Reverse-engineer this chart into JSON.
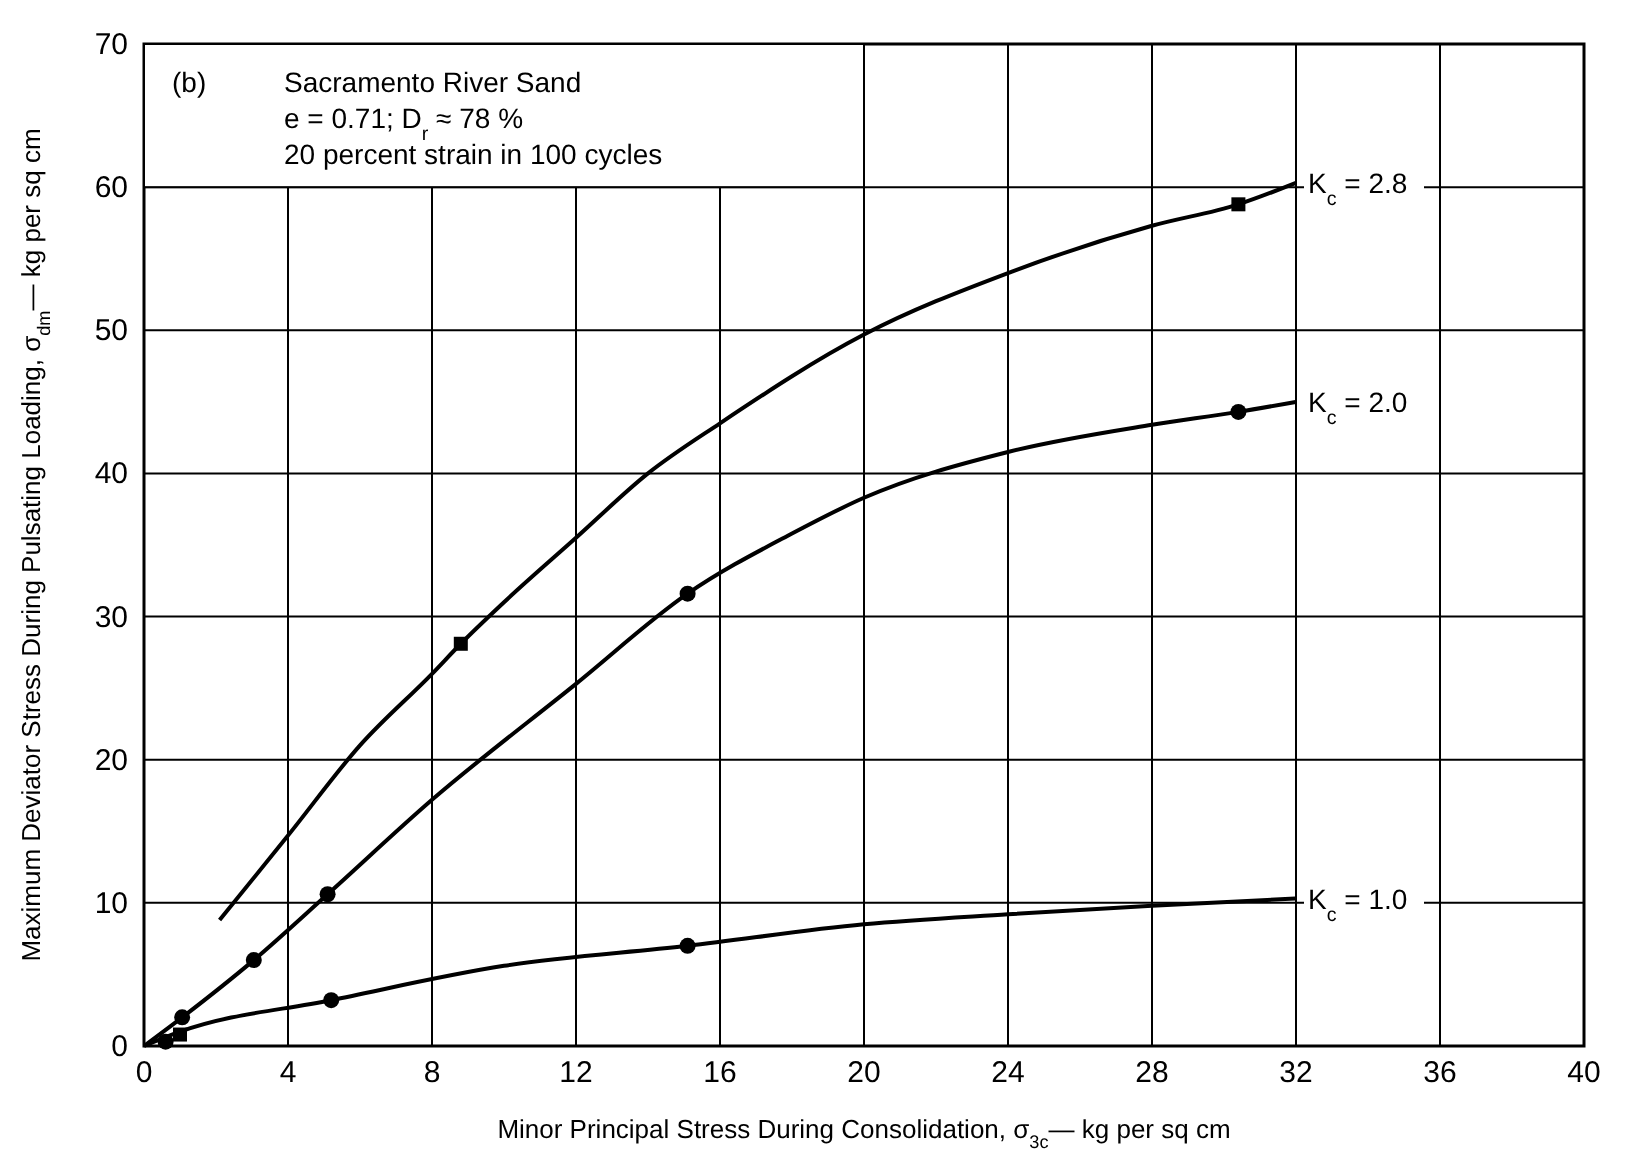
{
  "chart_data": {
    "type": "line",
    "xlabel": "Minor Principal Stress During Consolidation, σ$_{3c}$— kg per sq cm",
    "ylabel": "Maximum Deviator Stress During Pulsating Loading, σ$_{dm}$— kg per sq cm",
    "annotations": [
      "(b)",
      "Sacramento River Sand",
      "e = 0.71;  D$_{r}$ ≈ 78 %",
      "20 percent strain in 100 cycles"
    ],
    "xlim": [
      0,
      40
    ],
    "ylim": [
      0,
      70
    ],
    "xticks": [
      0,
      4,
      8,
      12,
      16,
      20,
      24,
      28,
      32,
      36,
      40
    ],
    "yticks": [
      0,
      10,
      20,
      30,
      40,
      50,
      60,
      70
    ],
    "grid": true,
    "marker": "none",
    "line_style": "solid",
    "series": [
      {
        "name": "K$_{c}$ = 2.8",
        "color": "#000000",
        "x": [
          2.1,
          4,
          6,
          8,
          8.8,
          10,
          12,
          14,
          16,
          20,
          24,
          28,
          30.4,
          32
        ],
        "values": [
          8.8,
          14.7,
          21,
          26,
          28.1,
          31,
          35.5,
          40,
          43.5,
          49.7,
          54,
          57.3,
          58.8,
          60.3
        ]
      },
      {
        "name": "K$_{c}$ = 2.0",
        "color": "#000000",
        "x": [
          0,
          1.06,
          3.05,
          5.1,
          8,
          12,
          15.1,
          18,
          20,
          24,
          28,
          30.4,
          32
        ],
        "values": [
          0,
          2,
          6,
          10.6,
          17.2,
          25.3,
          31.6,
          35.8,
          38.3,
          41.5,
          43.4,
          44.3,
          45
        ]
      },
      {
        "name": "K$_{c}$ = 1.0",
        "color": "#000000",
        "x": [
          0,
          1,
          5.2,
          10,
          15.1,
          20,
          24,
          28,
          32
        ],
        "values": [
          0,
          1,
          3.2,
          5.6,
          7,
          8.5,
          9.2,
          9.8,
          10.3
        ]
      },
      {
        "type": "scatter",
        "marker": "square",
        "color": "#000000",
        "x": [
          1,
          8.8,
          30.4
        ],
        "values": [
          0.8,
          28.1,
          58.8
        ]
      },
      {
        "type": "scatter",
        "marker": "circle",
        "color": "#000000",
        "x": [
          1.06,
          3.05,
          5.1,
          15.1,
          30.4
        ],
        "values": [
          2,
          6,
          10.6,
          31.6,
          44.3
        ]
      },
      {
        "type": "scatter",
        "marker": "circle",
        "color": "#000000",
        "x": [
          0.6,
          5.2,
          15.1
        ],
        "values": [
          0.3,
          3.2,
          7
        ]
      }
    ]
  }
}
